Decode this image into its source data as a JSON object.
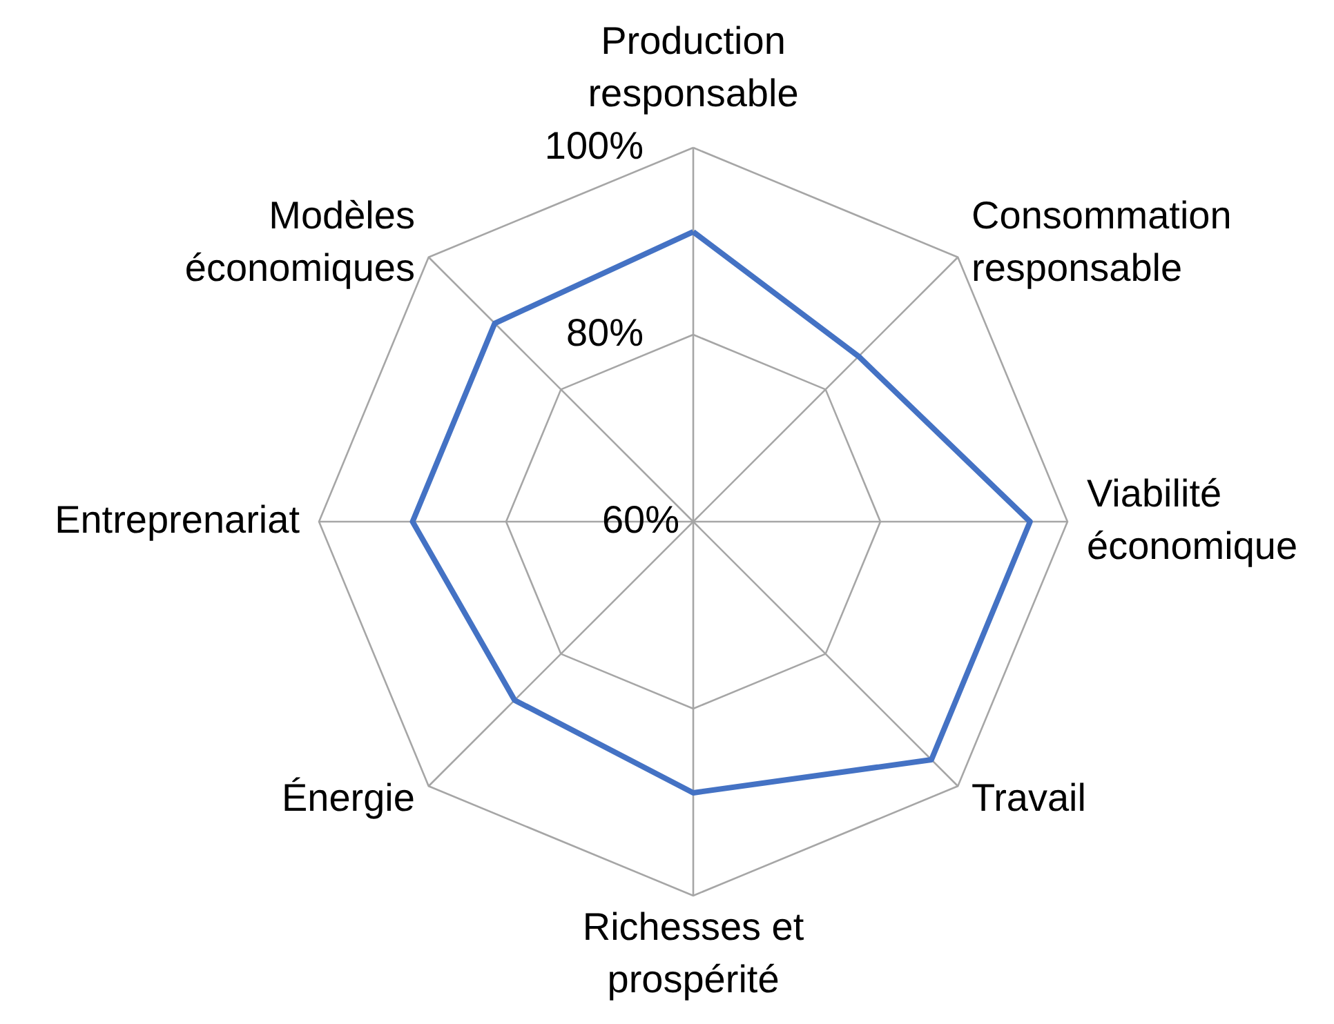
{
  "chart_data": {
    "type": "radar",
    "categories": [
      "Production responsable",
      "Consommation responsable",
      "Viabilité économique",
      "Travail",
      "Richesses et prospérité",
      "Énergie",
      "Entreprenariat",
      "Modèles économiques"
    ],
    "series": [
      {
        "color": "#4472c4",
        "values": [
          91,
          85,
          96,
          96,
          89,
          87,
          90,
          90
        ]
      }
    ],
    "ylim": [
      60,
      100
    ],
    "yticks": [
      {
        "value": 60,
        "label": "60%"
      },
      {
        "value": 80,
        "label": "80%"
      },
      {
        "value": 100,
        "label": "100%"
      }
    ],
    "grid": true
  }
}
